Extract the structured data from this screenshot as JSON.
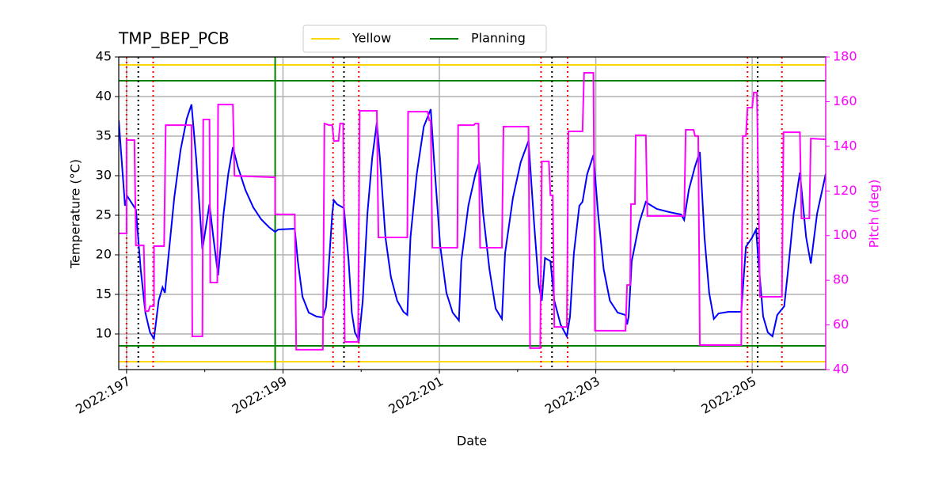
{
  "chart_data": {
    "type": "line",
    "title": "TMP_BEP_PCB",
    "xlabel": "Date",
    "ylabel": "Temperature (°C)",
    "y2label": "Pitch (deg)",
    "xlim": [
      196.9,
      205.94
    ],
    "xticks": [
      {
        "value": 197,
        "label": "2022:197"
      },
      {
        "value": 199,
        "label": "2022:199"
      },
      {
        "value": 201,
        "label": "2022:201"
      },
      {
        "value": 203,
        "label": "2022:203"
      },
      {
        "value": 205,
        "label": "2022:205"
      }
    ],
    "xminorticks": [
      198,
      200,
      202,
      204
    ],
    "ylim": [
      5.5,
      45
    ],
    "yticks": [
      10,
      15,
      20,
      25,
      30,
      35,
      40,
      45
    ],
    "y2lim": [
      40,
      180
    ],
    "y2ticks": [
      40,
      60,
      80,
      100,
      120,
      140,
      160,
      180
    ],
    "grid": true,
    "legend": "upper center",
    "series": [
      {
        "color": "#0000ff",
        "x": [
          196.9,
          196.98,
          197.01,
          197.12,
          197.18,
          197.24,
          197.3,
          197.35,
          197.41,
          197.46,
          197.49,
          197.53,
          197.61,
          197.69,
          197.77,
          197.83,
          197.89,
          197.97,
          198.01,
          198.06,
          198.11,
          198.17,
          198.24,
          198.3,
          198.36,
          198.42,
          198.52,
          198.62,
          198.72,
          198.82,
          198.9,
          198.94,
          199.15,
          199.19,
          199.25,
          199.33,
          199.43,
          199.51,
          199.55,
          199.59,
          199.63,
          199.65,
          199.69,
          199.78,
          199.84,
          199.88,
          199.92,
          199.97,
          200.02,
          200.08,
          200.14,
          200.2,
          200.24,
          200.31,
          200.38,
          200.46,
          200.54,
          200.59,
          200.63,
          200.71,
          200.8,
          200.89,
          200.93,
          201.01,
          201.09,
          201.17,
          201.25,
          201.28,
          201.37,
          201.46,
          201.51,
          201.56,
          201.64,
          201.72,
          201.8,
          201.84,
          201.94,
          202.04,
          202.14,
          202.21,
          202.27,
          202.31,
          202.35,
          202.42,
          202.47,
          202.55,
          202.63,
          202.67,
          202.72,
          202.79,
          202.83,
          202.89,
          202.97,
          203.03,
          203.1,
          203.18,
          203.28,
          203.38,
          203.4,
          203.42,
          203.46,
          203.56,
          203.64,
          203.68,
          203.78,
          203.94,
          204.09,
          204.13,
          204.19,
          204.27,
          204.33,
          204.39,
          204.45,
          204.51,
          204.57,
          204.7,
          204.86,
          204.92,
          205.0,
          205.05,
          205.08,
          205.14,
          205.2,
          205.26,
          205.32,
          205.41,
          205.46,
          205.53,
          205.61,
          205.69,
          205.75,
          205.83,
          205.94
        ],
        "values": [
          37.0,
          26.2,
          27.4,
          25.7,
          18.2,
          12.7,
          10.2,
          9.4,
          14.2,
          15.9,
          15.2,
          19.2,
          27.2,
          33.2,
          37.2,
          39.0,
          32.2,
          20.7,
          23.2,
          26.4,
          22.2,
          17.4,
          25.2,
          30.2,
          33.6,
          31.2,
          28.2,
          26.0,
          24.5,
          23.5,
          22.9,
          23.2,
          23.3,
          19.2,
          14.7,
          12.7,
          12.2,
          12.1,
          13.4,
          19.2,
          25.2,
          26.9,
          26.4,
          25.9,
          19.2,
          12.7,
          10.2,
          9.2,
          14.2,
          25.2,
          32.2,
          36.7,
          32.2,
          22.2,
          17.2,
          14.2,
          12.8,
          12.4,
          22.2,
          30.2,
          36.2,
          38.4,
          32.2,
          21.2,
          15.2,
          12.7,
          11.7,
          19.2,
          26.2,
          30.2,
          31.7,
          25.2,
          18.2,
          13.2,
          11.9,
          20.2,
          27.2,
          31.7,
          34.4,
          24.2,
          16.2,
          14.2,
          19.6,
          19.2,
          14.2,
          11.2,
          9.7,
          12.2,
          20.2,
          26.2,
          26.7,
          30.2,
          32.6,
          25.2,
          18.2,
          14.2,
          12.7,
          12.4,
          11.2,
          12.2,
          19.2,
          24.2,
          26.7,
          26.4,
          25.8,
          25.4,
          25.1,
          24.4,
          28.2,
          31.2,
          33.0,
          22.2,
          15.2,
          11.9,
          12.6,
          12.8,
          12.8,
          21.0,
          22.2,
          23.2,
          19.2,
          12.2,
          10.2,
          9.7,
          12.4,
          13.5,
          18.2,
          25.2,
          30.4,
          22.2,
          18.9,
          25.2,
          30.2
        ]
      },
      {
        "color": "#ff00ff",
        "axis": "y2",
        "x": [
          196.9,
          197.0,
          197.0,
          197.1,
          197.12,
          197.22,
          197.24,
          197.28,
          197.3,
          197.35,
          197.35,
          197.48,
          197.5,
          197.83,
          197.84,
          197.97,
          197.98,
          198.06,
          198.07,
          198.16,
          198.17,
          198.36,
          198.38,
          198.9,
          198.9,
          199.15,
          199.17,
          199.51,
          199.53,
          199.59,
          199.63,
          199.65,
          199.71,
          199.73,
          199.77,
          199.79,
          199.96,
          199.98,
          200.2,
          200.22,
          200.59,
          200.6,
          200.85,
          200.87,
          200.89,
          200.91,
          201.23,
          201.24,
          201.44,
          201.46,
          201.5,
          201.52,
          201.8,
          201.82,
          202.14,
          202.16,
          202.29,
          202.31,
          202.4,
          202.42,
          202.45,
          202.47,
          202.63,
          202.65,
          202.83,
          202.85,
          202.97,
          202.99,
          203.38,
          203.4,
          203.44,
          203.45,
          203.5,
          203.51,
          203.64,
          203.66,
          204.13,
          204.15,
          204.25,
          204.27,
          204.31,
          204.33,
          204.86,
          204.88,
          204.92,
          204.94,
          205.0,
          205.02,
          205.06,
          205.1,
          205.38,
          205.4,
          205.61,
          205.63,
          205.73,
          205.75,
          205.94
        ],
        "values": [
          101.0,
          101.0,
          142.8,
          142.8,
          95.6,
          95.6,
          66.2,
          66.2,
          68.4,
          68.4,
          95.3,
          95.3,
          149.5,
          149.5,
          54.9,
          54.9,
          152.0,
          152.0,
          79.0,
          79.0,
          158.7,
          158.7,
          126.8,
          126.1,
          109.5,
          109.5,
          48.9,
          48.9,
          150.2,
          149.5,
          149.5,
          142.4,
          142.4,
          150.2,
          150.2,
          52.4,
          52.4,
          155.9,
          155.9,
          99.2,
          99.2,
          155.5,
          155.5,
          151.6,
          151.6,
          94.6,
          94.6,
          149.5,
          149.5,
          150.2,
          150.2,
          94.6,
          94.6,
          148.8,
          148.8,
          49.6,
          49.6,
          133.2,
          133.2,
          118.0,
          118.0,
          59.1,
          59.1,
          146.7,
          146.7,
          172.9,
          172.9,
          57.4,
          57.4,
          77.9,
          77.9,
          114.1,
          114.1,
          144.9,
          144.9,
          108.8,
          108.8,
          147.4,
          147.4,
          144.6,
          144.6,
          51.0,
          51.0,
          144.6,
          144.6,
          157.3,
          157.3,
          164.1,
          164.1,
          72.6,
          72.6,
          146.3,
          146.3,
          107.7,
          107.7,
          143.5,
          143.1
        ]
      }
    ],
    "hlines": [
      {
        "name": "Yellow",
        "color": "#ffd700",
        "values": [
          44,
          6.5
        ]
      },
      {
        "name": "Planning",
        "color": "#008000",
        "values": [
          42,
          8.5
        ],
        "x": [
          198.9
        ]
      }
    ],
    "vlines": [
      {
        "color": "#ff0000",
        "style": "dotted",
        "x": [
          197.0,
          197.34,
          199.64,
          199.97,
          202.3,
          202.64,
          204.94,
          205.38
        ]
      },
      {
        "color": "#000000",
        "style": "dotted",
        "x": [
          197.15,
          199.78,
          202.44,
          205.07
        ]
      }
    ]
  }
}
